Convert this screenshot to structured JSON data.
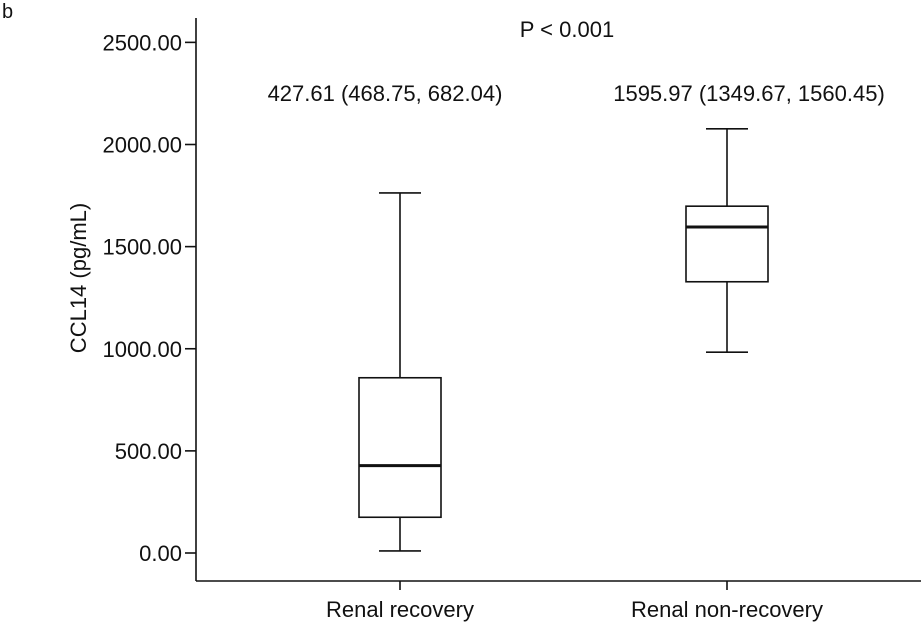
{
  "panel_label": "b",
  "chart_data": {
    "type": "box",
    "ylabel": "CCL14 (pg/mL)",
    "xlabel": "",
    "ylim": [
      -100,
      2700
    ],
    "yticks": [
      0,
      500,
      1000,
      1500,
      2000,
      2500
    ],
    "ytick_labels": [
      "0.00",
      "500.00",
      "1000.00",
      "1500.00",
      "2000.00",
      "2500.00"
    ],
    "grid": false,
    "annotation": "P < 0.001",
    "categories": [
      "Renal recovery",
      "Renal non-recovery"
    ],
    "boxes": [
      {
        "category": "Renal recovery",
        "min": 10,
        "q1": 175,
        "median": 427.61,
        "q3": 858,
        "max": 1763
      },
      {
        "category": "Renal non-recovery",
        "min": 983,
        "q1": 1328,
        "median": 1595.97,
        "q3": 1698,
        "max": 2077
      }
    ],
    "box_labels": [
      "427.61 (468.75, 682.04)",
      "1595.97 (1349.67, 1560.45)"
    ]
  }
}
